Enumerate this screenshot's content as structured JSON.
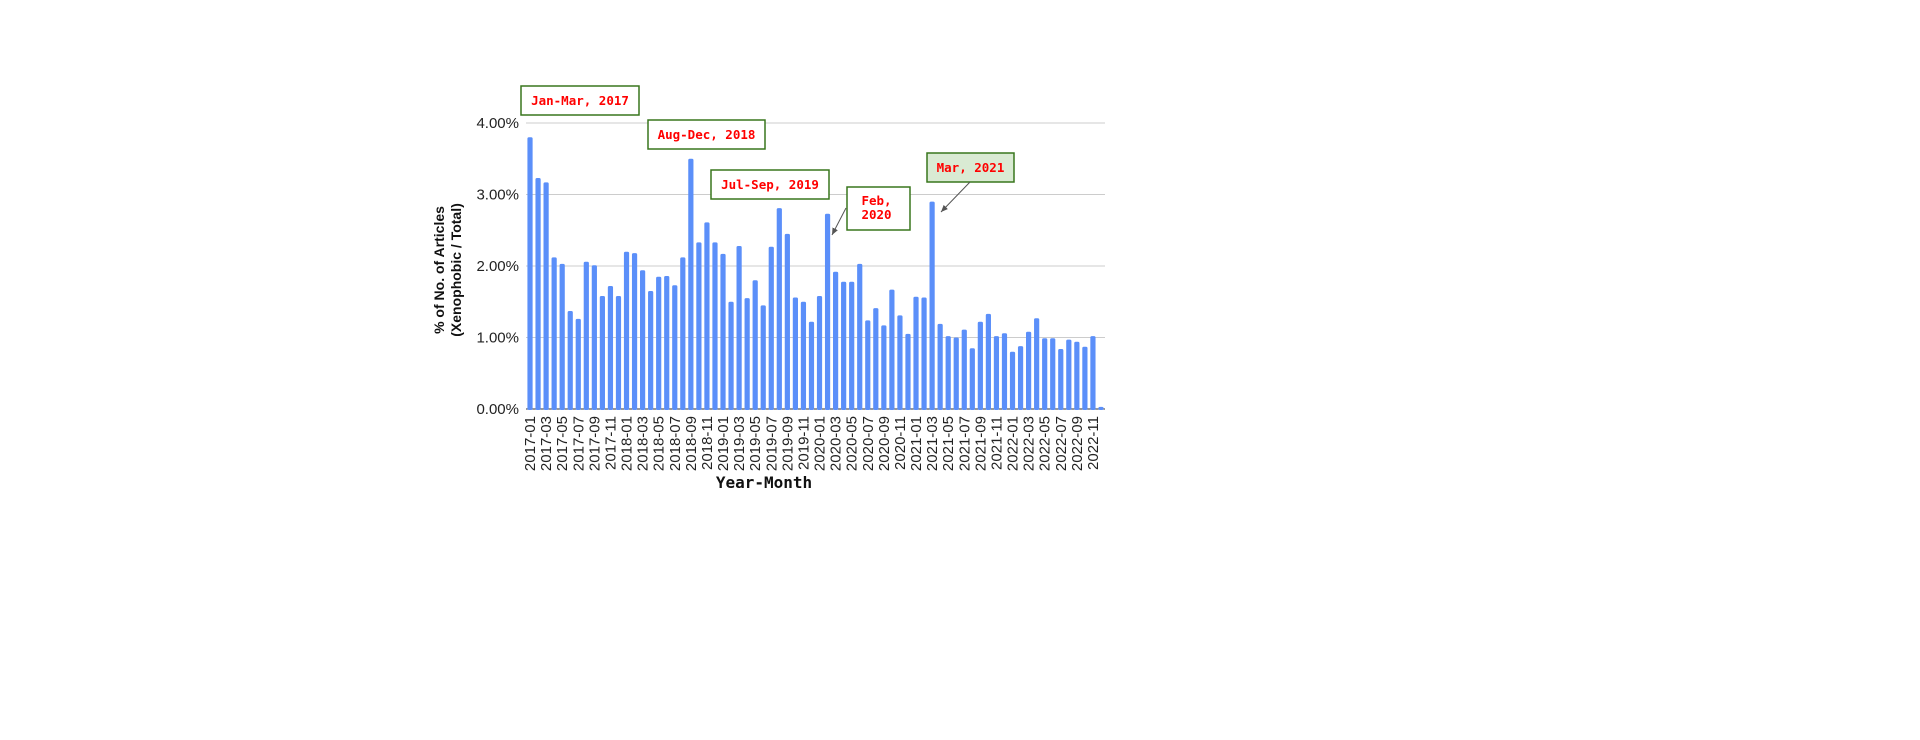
{
  "chart_data": {
    "type": "bar",
    "title": "",
    "xlabel": "Year-Month",
    "ylabel": "% of No. of Articles",
    "ylabel_line2": "(Xenophobic / Total)",
    "ylim": [
      0,
      4
    ],
    "yticks": [
      "0.00%",
      "1.00%",
      "2.00%",
      "3.00%",
      "4.00%"
    ],
    "grid": true,
    "bar_color": "#5b8ff9",
    "categories": [
      "2017-01",
      "2017-02",
      "2017-03",
      "2017-04",
      "2017-05",
      "2017-06",
      "2017-07",
      "2017-08",
      "2017-09",
      "2017-10",
      "2017-11",
      "2017-12",
      "2018-01",
      "2018-02",
      "2018-03",
      "2018-04",
      "2018-05",
      "2018-06",
      "2018-07",
      "2018-08",
      "2018-09",
      "2018-10",
      "2018-11",
      "2018-12",
      "2019-01",
      "2019-02",
      "2019-03",
      "2019-04",
      "2019-05",
      "2019-06",
      "2019-07",
      "2019-08",
      "2019-09",
      "2019-10",
      "2019-11",
      "2019-12",
      "2020-01",
      "2020-02",
      "2020-03",
      "2020-04",
      "2020-05",
      "2020-06",
      "2020-07",
      "2020-08",
      "2020-09",
      "2020-10",
      "2020-11",
      "2020-12",
      "2021-01",
      "2021-02",
      "2021-03",
      "2021-04",
      "2021-05",
      "2021-06",
      "2021-07",
      "2021-08",
      "2021-09",
      "2021-10",
      "2021-11",
      "2021-12",
      "2022-01",
      "2022-02",
      "2022-03",
      "2022-04",
      "2022-05",
      "2022-06",
      "2022-07",
      "2022-08",
      "2022-09",
      "2022-10",
      "2022-11",
      "2022-12"
    ],
    "values": [
      3.8,
      3.23,
      3.17,
      2.12,
      2.03,
      1.37,
      1.26,
      2.06,
      2.01,
      1.58,
      1.72,
      1.58,
      2.2,
      2.18,
      1.94,
      1.65,
      1.85,
      1.86,
      1.73,
      2.12,
      3.5,
      2.33,
      2.61,
      2.33,
      2.17,
      1.5,
      2.28,
      1.55,
      1.8,
      1.45,
      2.27,
      2.81,
      2.45,
      1.56,
      1.5,
      1.22,
      1.58,
      2.73,
      1.92,
      1.78,
      1.78,
      2.03,
      1.24,
      1.41,
      1.17,
      1.67,
      1.31,
      1.05,
      1.57,
      1.56,
      2.9,
      1.19,
      1.02,
      1.0,
      1.11,
      0.85,
      1.22,
      1.33,
      1.02,
      1.06,
      0.8,
      0.88,
      1.08,
      1.27,
      0.99,
      0.99,
      0.84,
      0.97,
      0.94,
      0.87,
      1.02,
      0.03
    ],
    "annotations": [
      {
        "text": "Jan-Mar, 2017",
        "fill": "#ffffff"
      },
      {
        "text": "Aug-Dec, 2018",
        "fill": "#ffffff"
      },
      {
        "text": "Jul-Sep, 2019",
        "fill": "#ffffff"
      },
      {
        "text": "Feb,",
        "text2": "2020",
        "fill": "#ffffff"
      },
      {
        "text": "Mar, 2021",
        "fill": "#d9ead3"
      }
    ],
    "annotation_border": "#38761d",
    "annotation_text_color": "#ff0000"
  }
}
